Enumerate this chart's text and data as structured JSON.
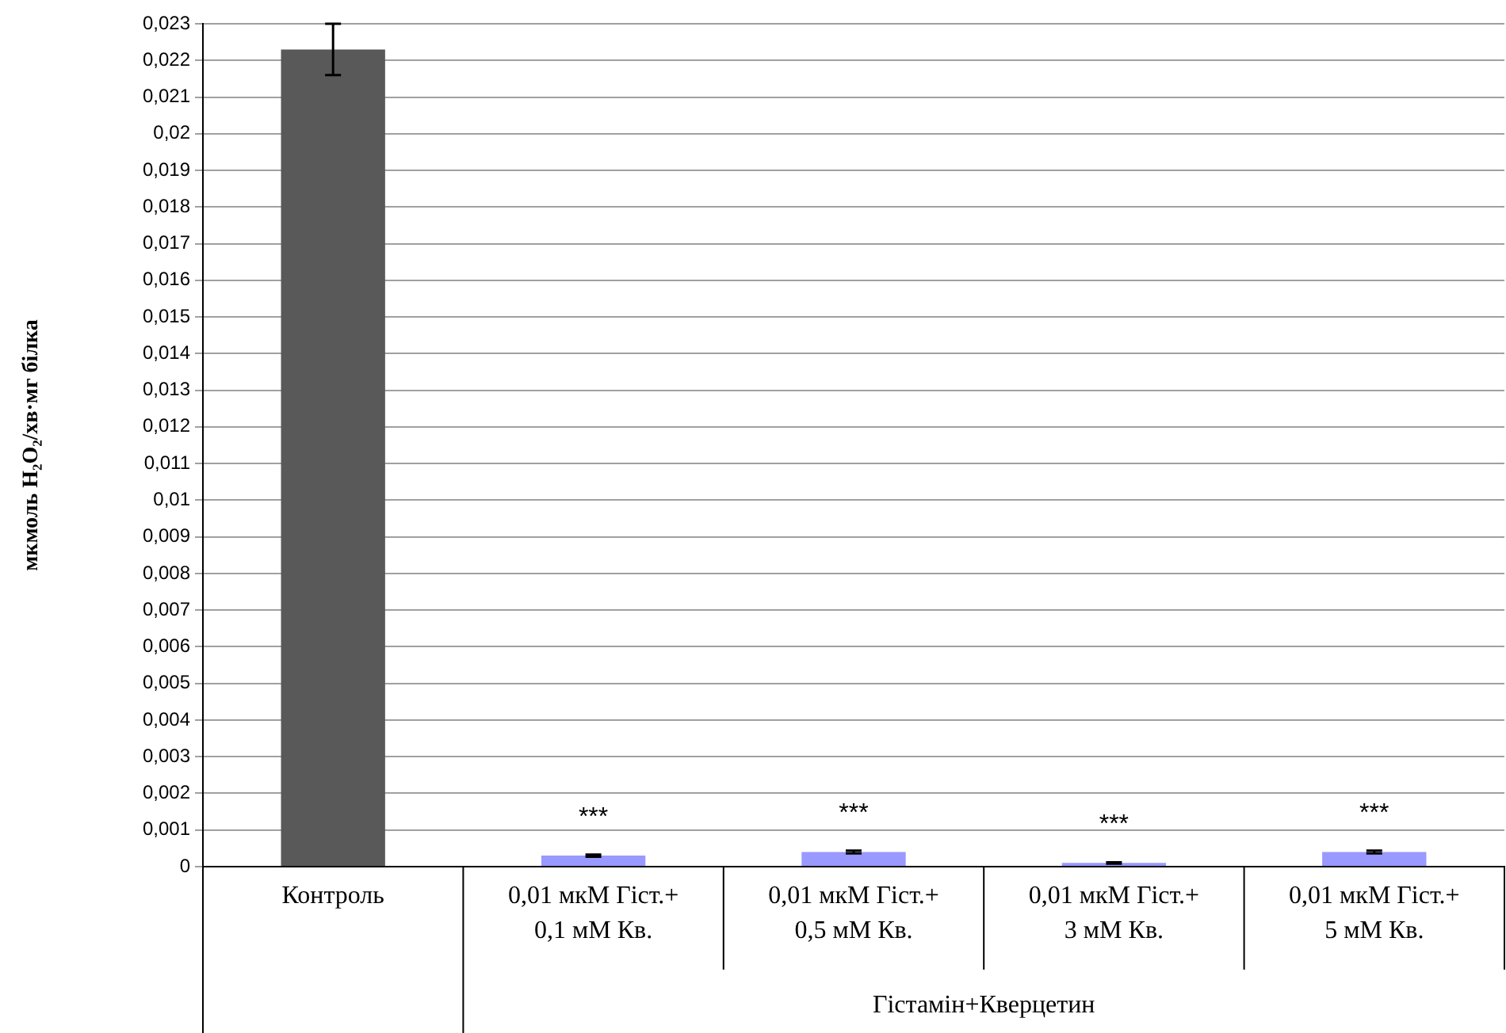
{
  "chart_data": {
    "type": "bar",
    "ylabel": "мкмоль H₂O₂/хв·мг білка",
    "categories": [
      "Контроль",
      "0,01 мкМ Гіст.+\n0,1 мМ Кв.",
      "0,01 мкМ Гіст.+\n0,5 мМ Кв.",
      "0,01 мкМ Гіст.+\n3 мМ Кв.",
      "0,01 мкМ Гіст.+\n5 мМ Кв."
    ],
    "values": [
      0.0223,
      0.0003,
      0.0004,
      0.0001,
      0.0004
    ],
    "errors": [
      0.0007,
      3e-05,
      4e-05,
      2e-05,
      4e-05
    ],
    "colors": [
      "#595959",
      "#9999ff",
      "#9999ff",
      "#9999ff",
      "#9999ff"
    ],
    "ylim": [
      0,
      0.023
    ],
    "yticks": [
      {
        "value": 0,
        "label": "0"
      },
      {
        "value": 0.001,
        "label": "0,001"
      },
      {
        "value": 0.002,
        "label": "0,002"
      },
      {
        "value": 0.003,
        "label": "0,003"
      },
      {
        "value": 0.004,
        "label": "0,004"
      },
      {
        "value": 0.005,
        "label": "0,005"
      },
      {
        "value": 0.006,
        "label": "0,006"
      },
      {
        "value": 0.007,
        "label": "0,007"
      },
      {
        "value": 0.008,
        "label": "0,008"
      },
      {
        "value": 0.009,
        "label": "0,009"
      },
      {
        "value": 0.01,
        "label": "0,01"
      },
      {
        "value": 0.011,
        "label": "0,011"
      },
      {
        "value": 0.012,
        "label": "0,012"
      },
      {
        "value": 0.013,
        "label": "0,013"
      },
      {
        "value": 0.014,
        "label": "0,014"
      },
      {
        "value": 0.015,
        "label": "0,015"
      },
      {
        "value": 0.016,
        "label": "0,016"
      },
      {
        "value": 0.017,
        "label": "0,017"
      },
      {
        "value": 0.018,
        "label": "0,018"
      },
      {
        "value": 0.019,
        "label": "0,019"
      },
      {
        "value": 0.02,
        "label": "0,02"
      },
      {
        "value": 0.021,
        "label": "0,021"
      },
      {
        "value": 0.022,
        "label": "0,022"
      },
      {
        "value": 0.023,
        "label": "0,023"
      }
    ],
    "grid": "y",
    "legend": false,
    "annotations": [
      {
        "text": "***",
        "x": "0,01 мкМ Гіст.+\n0,1 мМ Кв.",
        "y": 0.0003
      },
      {
        "text": "***",
        "x": "0,01 мкМ Гіст.+\n0,5 мМ Кв.",
        "y": 0.0004
      },
      {
        "text": "***",
        "x": "0,01 мкМ Гіст.+\n3 мМ Кв.",
        "y": 0.0001
      },
      {
        "text": "***",
        "x": "0,01 мкМ Гіст.+\n5 мМ Кв.",
        "y": 0.0004
      },
      "Гістамін+Кверцетин"
    ]
  }
}
